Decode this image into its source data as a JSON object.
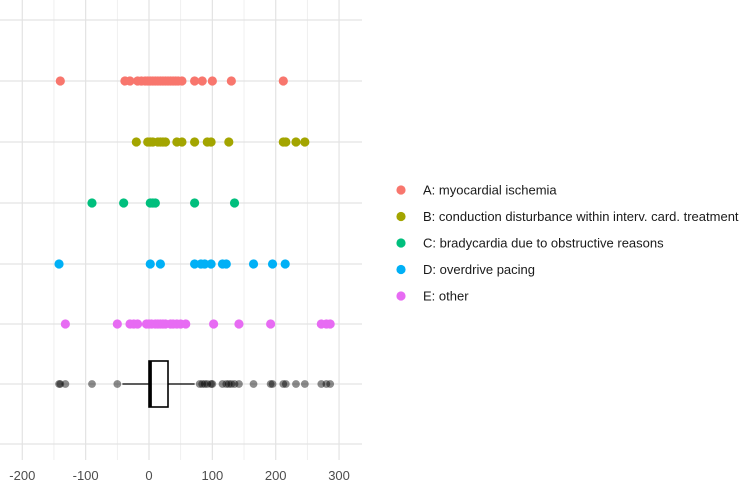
{
  "chart_data": {
    "type": "scatter",
    "title": "",
    "xlabel": "",
    "ylabel": "",
    "xlim": [
      -220,
      325
    ],
    "x_ticks": [
      -200,
      -100,
      0,
      100,
      200,
      300
    ],
    "x_tick_labels": [
      "-200",
      "-100",
      "0",
      "100",
      "200",
      "300"
    ],
    "grid": true,
    "legend_position": "right",
    "series": [
      {
        "name": "A: myocardial ischemia",
        "color": "#F8766D",
        "values": [
          -140,
          -38,
          -30,
          -18,
          -12,
          -6,
          -2,
          2,
          6,
          10,
          14,
          18,
          22,
          26,
          30,
          34,
          38,
          42,
          46,
          52,
          72,
          84,
          100,
          130,
          212
        ]
      },
      {
        "name": "B: conduction disturbance within interv. card. treatment",
        "color": "#A3A500",
        "values": [
          -20,
          -2,
          2,
          6,
          14,
          18,
          22,
          26,
          44,
          52,
          72,
          92,
          98,
          126,
          212,
          216,
          232,
          246
        ]
      },
      {
        "name": "C: bradycardia due to obstructive reasons",
        "color": "#00BF7D",
        "values": [
          -90,
          -40,
          2,
          6,
          10,
          72,
          135
        ]
      },
      {
        "name": "D: overdrive pacing",
        "color": "#00B0F6",
        "values": [
          -142,
          2,
          18,
          72,
          82,
          88,
          98,
          116,
          122,
          165,
          195,
          215
        ]
      },
      {
        "name": "E: other",
        "color": "#E76BF3",
        "values": [
          -132,
          -50,
          -30,
          -24,
          -18,
          -4,
          0,
          4,
          10,
          14,
          18,
          22,
          26,
          34,
          38,
          44,
          50,
          58,
          102,
          142,
          192,
          272,
          280,
          286
        ]
      }
    ],
    "summary": {
      "name": "all",
      "point_color": "#000000",
      "box": {
        "whisker_low": -42,
        "q1": 0,
        "median": 2,
        "q3": 30,
        "whisker_high": 72
      },
      "values": [
        -142,
        -140,
        -132,
        -90,
        -50,
        80,
        84,
        88,
        92,
        98,
        100,
        116,
        122,
        126,
        130,
        135,
        142,
        165,
        192,
        195,
        212,
        216,
        232,
        246,
        272,
        280,
        286
      ]
    }
  }
}
